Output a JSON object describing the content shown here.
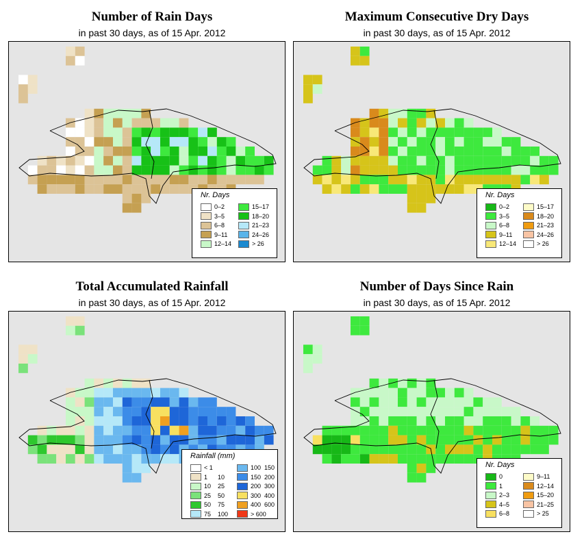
{
  "panels": [
    {
      "title": "Number of Rain Days",
      "subtitle": "in past 30 days, as of  15 Apr. 2012",
      "legend_title": "Nr. Days",
      "legend_type": "cat",
      "legend": [
        {
          "label": "0–2",
          "color": "#ffffff"
        },
        {
          "label": "3–5",
          "color": "#efe2c6"
        },
        {
          "label": "6–8",
          "color": "#dcc396"
        },
        {
          "label": "9–11",
          "color": "#c5a052"
        },
        {
          "label": "12–14",
          "color": "#c8f8c8"
        },
        {
          "label": "15–17",
          "color": "#3ee93e"
        },
        {
          "label": "18–20",
          "color": "#17c117"
        },
        {
          "label": "21–23",
          "color": "#b5e8f8"
        },
        {
          "label": "24–26",
          "color": "#5ab4ea"
        },
        {
          "label": "> 26",
          "color": "#1b8ad0"
        }
      ]
    },
    {
      "title": "Maximum Consecutive Dry Days",
      "subtitle": "in past 30 days, as of  15 Apr. 2012",
      "legend_title": "Nr. Days",
      "legend_type": "cat",
      "legend": [
        {
          "label": "0–2",
          "color": "#17b817"
        },
        {
          "label": "3–5",
          "color": "#3ee93e"
        },
        {
          "label": "6–8",
          "color": "#c8f8c8"
        },
        {
          "label": "9–11",
          "color": "#d6c41a"
        },
        {
          "label": "12–14",
          "color": "#f8e878"
        },
        {
          "label": "15–17",
          "color": "#fdfbc8"
        },
        {
          "label": "18–20",
          "color": "#d98a1c"
        },
        {
          "label": "21–23",
          "color": "#ef9b10"
        },
        {
          "label": "24–26",
          "color": "#f8c4a4"
        },
        {
          "label": "> 26",
          "color": "#ffffff"
        }
      ]
    },
    {
      "title": "Total Accumulated Rainfall",
      "subtitle": "in past 30 days, as of  15 Apr. 2012",
      "legend_title": "Rainfall (mm)",
      "legend_type": "range",
      "legend": [
        {
          "lo": "< 1",
          "hi": "",
          "color": "#ffffff"
        },
        {
          "lo": "1",
          "hi": "10",
          "color": "#efe2c6"
        },
        {
          "lo": "10",
          "hi": "25",
          "color": "#c8f8c8"
        },
        {
          "lo": "25",
          "hi": "50",
          "color": "#7ae27a"
        },
        {
          "lo": "50",
          "hi": "75",
          "color": "#2ec82e"
        },
        {
          "lo": "75",
          "hi": "100",
          "color": "#b5e8f8"
        },
        {
          "lo": "100",
          "hi": "150",
          "color": "#6ab8ef"
        },
        {
          "lo": "150",
          "hi": "200",
          "color": "#3c8ce8"
        },
        {
          "lo": "200",
          "hi": "300",
          "color": "#1e66d8"
        },
        {
          "lo": "300",
          "hi": "400",
          "color": "#f8e060"
        },
        {
          "lo": "400",
          "hi": "600",
          "color": "#f0a020"
        },
        {
          "lo": "> 600",
          "hi": "",
          "color": "#f03818"
        }
      ]
    },
    {
      "title": "Number of Days Since Rain",
      "subtitle": "in past 30 days, as of  15 Apr. 2012",
      "legend_title": "Nr. Days",
      "legend_type": "cat",
      "legend": [
        {
          "label": "0",
          "color": "#17b817"
        },
        {
          "label": "1",
          "color": "#3ee93e"
        },
        {
          "label": "2–3",
          "color": "#c8f8c8"
        },
        {
          "label": "4–5",
          "color": "#d6c41a"
        },
        {
          "label": "6–8",
          "color": "#f8e060"
        },
        {
          "label": "9–11",
          "color": "#fdfbc8"
        },
        {
          "label": "12–14",
          "color": "#d98a1c"
        },
        {
          "label": "15–20",
          "color": "#ef9b10"
        },
        {
          "label": "21–25",
          "color": "#f8c4a4"
        },
        {
          "label": "> 25",
          "color": "#ffffff"
        }
      ]
    }
  ]
}
